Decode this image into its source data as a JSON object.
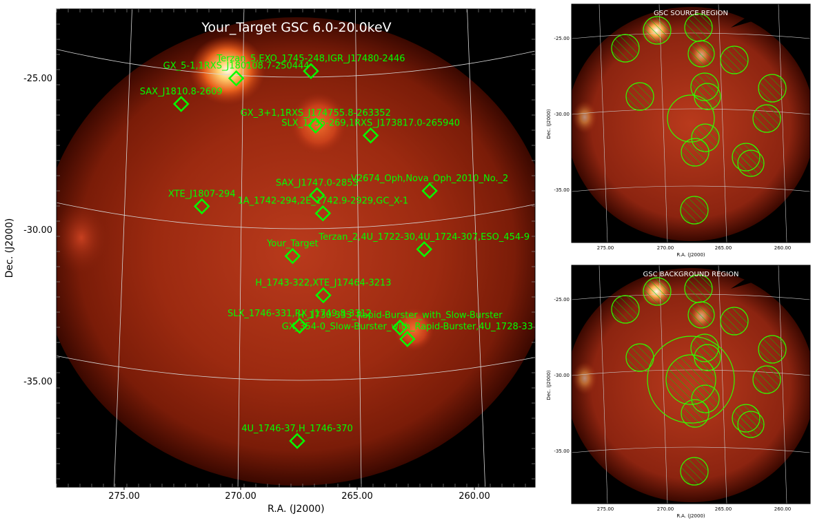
{
  "main": {
    "title": "Your_Target GSC 6.0-20.0keV",
    "xlabel": "R.A. (J2000)",
    "ylabel": "Dec. (J2000)",
    "xticks": [
      "275.00",
      "270.00",
      "265.00",
      "260.00"
    ],
    "yticks": [
      "-25.00",
      "-30.00",
      "-35.00"
    ],
    "sources": [
      {
        "label": "Terzan_5,EXO_1745-248,IGR_J17480-2446",
        "ra": 267.0,
        "dec": -24.8
      },
      {
        "label": "GX_5-1,1RXS_J180108.7-250444",
        "ra": 270.3,
        "dec": -25.1
      },
      {
        "label": "SAX_J1810.8-2609",
        "ra": 272.7,
        "dec": -26.1
      },
      {
        "label": "GX_3+1,1RXS_J174755.8-263352",
        "ra": 266.8,
        "dec": -26.6
      },
      {
        "label": "SLX_1735-269,1RXS_J173817.0-265940",
        "ra": 264.4,
        "dec": -27.0
      },
      {
        "label": "SAX_J1747.0-2853",
        "ra": 266.75,
        "dec": -28.9
      },
      {
        "label": "V2674_Oph,Nova_Oph_2010_No._2",
        "ra": 261.9,
        "dec": -29.0
      },
      {
        "label": "XTE_J1807-294",
        "ra": 271.7,
        "dec": -29.4
      },
      {
        "label": "1A_1742-294,2E_1742.9-2929,GC_X-1",
        "ra": 266.5,
        "dec": -29.5
      },
      {
        "label": "Your_Target",
        "ra": 267.8,
        "dec": -30.9
      },
      {
        "label": "Terzan_2,4U_1722-30,4U_1724-307,ESO_454-9",
        "ra": 262.2,
        "dec": -30.9
      },
      {
        "label": "H_1743-322,XTE_J17464-3213",
        "ra": 266.5,
        "dec": -32.2
      },
      {
        "label": "SLX_1746-331,RX_J1749.8-3312",
        "ra": 267.5,
        "dec": -33.2
      },
      {
        "label": "H_1730-333_Rapid-Burster_with_Slow-Burster",
        "ra": 263.3,
        "dec": -33.4
      },
      {
        "label": "GX_354-0_Slow-Burster_with_Rapid-Burster,4U_1728-33",
        "ra": 263.0,
        "dec": -33.8
      },
      {
        "label": "4U_1746-37,H_1746-370",
        "ra": 267.6,
        "dec": -37.0
      }
    ],
    "colors": {
      "region": "#00ff00",
      "grid": "#d8d8d8"
    }
  },
  "source_panel": {
    "title": "GSC SOURCE REGION",
    "xlabel": "R.A. (J2000)",
    "ylabel": "Dec. (J2000)",
    "xticks": [
      "275.00",
      "270.00",
      "265.00",
      "260.00"
    ],
    "yticks": [
      "-25.00",
      "-30.00",
      "-35.00"
    ]
  },
  "background_panel": {
    "title": "GSC BACKGROUND REGION",
    "xlabel": "R.A. (J2000)",
    "ylabel": "Dec. (J2000)",
    "xticks": [
      "275.00",
      "270.00",
      "265.00",
      "260.00"
    ],
    "yticks": [
      "-25.00",
      "-30.00",
      "-35.00"
    ]
  }
}
